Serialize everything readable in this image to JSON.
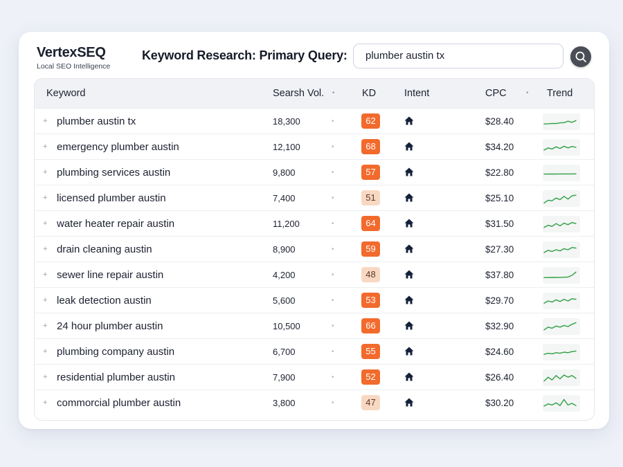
{
  "brand": {
    "name": "VertexSEQ",
    "tagline": "Local SEO Intelligence"
  },
  "query": {
    "label": "Keyword Research: Primary Query:",
    "value": "plumber austin tx",
    "search_icon": "search-icon"
  },
  "table": {
    "headers": {
      "keyword": "Keyword",
      "volume": "Searsh Vol.",
      "kd": "KD",
      "intent": "Intent",
      "cpc": "CPC",
      "trend": "Trend"
    },
    "intent_icon": "home-icon",
    "colors": {
      "kd_high": "#f26a2c",
      "kd_medium": "#f9d8c3",
      "trend_line": "#2f9e44"
    },
    "rows": [
      {
        "keyword": "plumber austin tx",
        "volume": "18,300",
        "kd": "62",
        "kd_level": "high",
        "cpc": "$28.40",
        "trend": [
          0.3,
          0.32,
          0.35,
          0.34,
          0.4,
          0.42,
          0.55,
          0.45,
          0.6
        ]
      },
      {
        "keyword": "emergency plumber austin",
        "volume": "12,100",
        "kd": "68",
        "kd_level": "high",
        "cpc": "$34.20",
        "trend": [
          0.25,
          0.45,
          0.35,
          0.55,
          0.4,
          0.6,
          0.45,
          0.58,
          0.5
        ]
      },
      {
        "keyword": "plumbing services austin",
        "volume": "9,800",
        "kd": "57",
        "kd_level": "high",
        "cpc": "$22.80",
        "trend": [
          0.4,
          0.4,
          0.41,
          0.4,
          0.41,
          0.41,
          0.41,
          0.41,
          0.42
        ]
      },
      {
        "keyword": "licensed plumber austin",
        "volume": "7,400",
        "kd": "51",
        "kd_level": "medium",
        "cpc": "$25.10",
        "trend": [
          0.1,
          0.35,
          0.3,
          0.55,
          0.4,
          0.7,
          0.45,
          0.75,
          0.8
        ]
      },
      {
        "keyword": "water heater repair austin",
        "volume": "11,200",
        "kd": "64",
        "kd_level": "high",
        "cpc": "$31.50",
        "trend": [
          0.2,
          0.4,
          0.3,
          0.55,
          0.35,
          0.6,
          0.45,
          0.65,
          0.55
        ]
      },
      {
        "keyword": "drain cleaning austin",
        "volume": "8,900",
        "kd": "59",
        "kd_level": "high",
        "cpc": "$27.30",
        "trend": [
          0.25,
          0.45,
          0.35,
          0.5,
          0.4,
          0.6,
          0.5,
          0.7,
          0.65
        ]
      },
      {
        "keyword": "sewer line repair austin",
        "volume": "4,200",
        "kd": "48",
        "kd_level": "medium",
        "cpc": "$37.80",
        "trend": [
          0.3,
          0.3,
          0.31,
          0.31,
          0.32,
          0.33,
          0.35,
          0.5,
          0.8
        ]
      },
      {
        "keyword": "leak detection austin",
        "volume": "5,600",
        "kd": "53",
        "kd_level": "high",
        "cpc": "$29.70",
        "trend": [
          0.3,
          0.5,
          0.4,
          0.6,
          0.45,
          0.65,
          0.5,
          0.7,
          0.65
        ]
      },
      {
        "keyword": "24 hour plumber austin",
        "volume": "10,500",
        "kd": "66",
        "kd_level": "high",
        "cpc": "$32.90",
        "trend": [
          0.2,
          0.45,
          0.35,
          0.55,
          0.45,
          0.6,
          0.5,
          0.7,
          0.85
        ]
      },
      {
        "keyword": "plumbing company austin",
        "volume": "6,700",
        "kd": "55",
        "kd_level": "high",
        "cpc": "$24.60",
        "trend": [
          0.3,
          0.4,
          0.35,
          0.45,
          0.4,
          0.5,
          0.45,
          0.55,
          0.6
        ]
      },
      {
        "keyword": "residential plumber austin",
        "volume": "7,900",
        "kd": "52",
        "kd_level": "high",
        "cpc": "$26.40",
        "trend": [
          0.2,
          0.55,
          0.3,
          0.7,
          0.4,
          0.75,
          0.55,
          0.7,
          0.45
        ]
      },
      {
        "keyword": "commorcial plumber austin",
        "volume": "3,800",
        "kd": "47",
        "kd_level": "medium",
        "cpc": "$30.20",
        "trend": [
          0.25,
          0.45,
          0.35,
          0.55,
          0.3,
          0.85,
          0.35,
          0.5,
          0.3
        ]
      }
    ]
  }
}
